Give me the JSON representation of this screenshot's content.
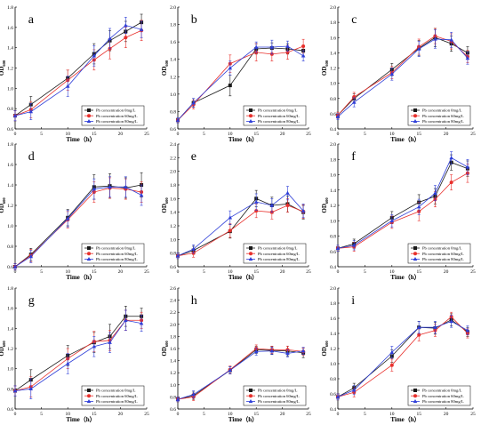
{
  "colors": {
    "s0": "#1a1a1a",
    "s1": "#e8302c",
    "s2": "#2f3fd8"
  },
  "chart_data": [
    {
      "type": "line",
      "letter": "a",
      "ylabel": "OD",
      "ylabel_sub": "600",
      "xlabel": "Time（h）",
      "xlim": [
        0,
        25
      ],
      "ylim": [
        0.6,
        1.8
      ],
      "xticks": [
        0,
        5,
        10,
        15,
        20,
        25
      ],
      "xtick_labels": [
        "0",
        "5",
        "10",
        "15",
        "20",
        "25"
      ],
      "yticks": [
        0.6,
        0.8,
        1.0,
        1.2,
        1.4,
        1.6,
        1.8
      ],
      "ytick_labels": [
        "0.6",
        "0.8",
        "1.0",
        "1.2",
        "1.4",
        "1.6",
        "1.8"
      ],
      "x": [
        0,
        3,
        10,
        15,
        18,
        21,
        24
      ],
      "series": [
        {
          "name": "Pb concentration 0mg/L",
          "values": [
            0.73,
            0.84,
            1.1,
            1.34,
            1.47,
            1.56,
            1.65
          ],
          "err": [
            0.05,
            0.08,
            0.08,
            0.1,
            0.1,
            0.1,
            0.08
          ]
        },
        {
          "name": "Pb concentration 60mg/L",
          "values": [
            0.73,
            0.79,
            1.08,
            1.28,
            1.39,
            1.5,
            1.57
          ],
          "err": [
            0.05,
            0.08,
            0.1,
            0.1,
            0.1,
            0.1,
            0.1
          ]
        },
        {
          "name": "Pb concentration 80mg/L",
          "values": [
            0.73,
            0.77,
            1.02,
            1.32,
            1.49,
            1.62,
            1.58
          ],
          "err": [
            0.05,
            0.08,
            0.1,
            0.1,
            0.1,
            0.08,
            0.08
          ]
        }
      ]
    },
    {
      "type": "line",
      "letter": "b",
      "ylabel": "OD",
      "ylabel_sub": "600",
      "xlabel": "Time（h）",
      "xlim": [
        0,
        25
      ],
      "ylim": [
        0.6,
        2.0
      ],
      "xticks": [
        0,
        5,
        10,
        15,
        20,
        25
      ],
      "xtick_labels": [
        "0",
        "5",
        "10",
        "15",
        "20",
        "25"
      ],
      "yticks": [
        0.6,
        0.8,
        1.0,
        1.2,
        1.4,
        1.6,
        1.8,
        2.0
      ],
      "ytick_labels": [
        "0.6",
        "0.8",
        "1.0",
        "1.2",
        "1.4",
        "1.6",
        "1.8",
        "2.0"
      ],
      "x": [
        0,
        3,
        10,
        15,
        18,
        21,
        24
      ],
      "series": [
        {
          "name": "Pb concentration 0mg/L",
          "values": [
            0.7,
            0.9,
            1.1,
            1.52,
            1.53,
            1.52,
            1.5
          ],
          "err": [
            0.03,
            0.05,
            0.12,
            0.06,
            0.06,
            0.06,
            0.06
          ]
        },
        {
          "name": "Pb concentration 60mg/L",
          "values": [
            0.7,
            0.88,
            1.35,
            1.48,
            1.46,
            1.48,
            1.55
          ],
          "err": [
            0.03,
            0.05,
            0.1,
            0.1,
            0.08,
            0.08,
            0.08
          ]
        },
        {
          "name": "Pb concentration 80mg/L",
          "values": [
            0.7,
            0.9,
            1.3,
            1.54,
            1.54,
            1.55,
            1.44
          ],
          "err": [
            0.03,
            0.05,
            0.08,
            0.06,
            0.08,
            0.06,
            0.06
          ]
        }
      ]
    },
    {
      "type": "line",
      "letter": "c",
      "ylabel": "OD",
      "ylabel_sub": "600",
      "xlabel": "Time（h）",
      "xlim": [
        0,
        25
      ],
      "ylim": [
        0.4,
        2.0
      ],
      "xticks": [
        0,
        5,
        10,
        15,
        20,
        25
      ],
      "xtick_labels": [
        "0",
        "5",
        "10",
        "15",
        "20",
        "25"
      ],
      "yticks": [
        0.4,
        0.6,
        0.8,
        1.0,
        1.2,
        1.4,
        1.6,
        1.8,
        2.0
      ],
      "ytick_labels": [
        "0.4",
        "0.6",
        "0.8",
        "1.0",
        "1.2",
        "1.4",
        "1.6",
        "1.8",
        "2.0"
      ],
      "x": [
        0,
        3,
        10,
        15,
        18,
        21,
        24
      ],
      "series": [
        {
          "name": "Pb concentration 0mg/L",
          "values": [
            0.58,
            0.8,
            1.18,
            1.46,
            1.6,
            1.52,
            1.4
          ],
          "err": [
            0.04,
            0.06,
            0.08,
            0.1,
            0.12,
            0.1,
            0.08
          ]
        },
        {
          "name": "Pb concentration 60mg/L",
          "values": [
            0.58,
            0.82,
            1.14,
            1.48,
            1.62,
            1.55,
            1.35
          ],
          "err": [
            0.04,
            0.06,
            0.08,
            0.1,
            0.1,
            0.1,
            0.08
          ]
        },
        {
          "name": "Pb concentration 80mg/L",
          "values": [
            0.56,
            0.75,
            1.12,
            1.45,
            1.58,
            1.57,
            1.33
          ],
          "err": [
            0.04,
            0.06,
            0.08,
            0.1,
            0.12,
            0.1,
            0.08
          ]
        }
      ]
    },
    {
      "type": "line",
      "letter": "d",
      "ylabel": "OD",
      "ylabel_sub": "600",
      "xlabel": "Time（h）",
      "xlim": [
        0,
        25
      ],
      "ylim": [
        0.6,
        1.8
      ],
      "xticks": [
        0,
        5,
        10,
        15,
        20,
        25
      ],
      "xtick_labels": [
        "0",
        "5",
        "10",
        "15",
        "20",
        "25"
      ],
      "yticks": [
        0.6,
        0.8,
        1.0,
        1.2,
        1.4,
        1.6,
        1.8
      ],
      "ytick_labels": [
        "0.6",
        "0.8",
        "1.0",
        "1.2",
        "1.4",
        "1.6",
        "1.8"
      ],
      "x": [
        0,
        3,
        10,
        15,
        18,
        21,
        24
      ],
      "series": [
        {
          "name": "Pb concentration 0mg/L",
          "values": [
            0.6,
            0.72,
            1.08,
            1.38,
            1.39,
            1.37,
            1.4
          ],
          "err": [
            0.03,
            0.06,
            0.08,
            0.12,
            0.12,
            0.1,
            0.12
          ]
        },
        {
          "name": "Pb concentration 60mg/L",
          "values": [
            0.6,
            0.71,
            1.06,
            1.33,
            1.37,
            1.36,
            1.33
          ],
          "err": [
            0.03,
            0.06,
            0.08,
            0.1,
            0.1,
            0.1,
            0.1
          ]
        },
        {
          "name": "Pb concentration 80mg/L",
          "values": [
            0.6,
            0.7,
            1.07,
            1.36,
            1.38,
            1.38,
            1.3
          ],
          "err": [
            0.03,
            0.06,
            0.08,
            0.1,
            0.1,
            0.1,
            0.1
          ]
        }
      ]
    },
    {
      "type": "line",
      "letter": "e",
      "ylabel": "OD",
      "ylabel_sub": "600",
      "xlabel": "Time（h）",
      "xlim": [
        0,
        25
      ],
      "ylim": [
        0.6,
        2.4
      ],
      "xticks": [
        0,
        5,
        10,
        15,
        20,
        25
      ],
      "xtick_labels": [
        "0",
        "5",
        "10",
        "15",
        "20",
        "25"
      ],
      "yticks": [
        0.6,
        0.8,
        1.0,
        1.2,
        1.4,
        1.6,
        1.8,
        2.0,
        2.2,
        2.4
      ],
      "ytick_labels": [
        "0.6",
        "0.8",
        "1.0",
        "1.2",
        "1.4",
        "1.6",
        "1.8",
        "2.0",
        "2.2",
        "2.4"
      ],
      "x": [
        0,
        3,
        10,
        15,
        18,
        21,
        24
      ],
      "series": [
        {
          "name": "Pb concentration 0mg/L",
          "values": [
            0.76,
            0.84,
            1.12,
            1.6,
            1.5,
            1.52,
            1.4
          ],
          "err": [
            0.04,
            0.06,
            0.1,
            0.12,
            0.12,
            0.12,
            0.1
          ]
        },
        {
          "name": "Pb concentration 60mg/L",
          "values": [
            0.76,
            0.8,
            1.13,
            1.42,
            1.4,
            1.5,
            1.41
          ],
          "err": [
            0.04,
            0.06,
            0.1,
            0.1,
            0.1,
            0.1,
            0.1
          ]
        },
        {
          "name": "Pb concentration 80mg/L",
          "values": [
            0.76,
            0.86,
            1.32,
            1.55,
            1.5,
            1.68,
            1.42
          ],
          "err": [
            0.04,
            0.06,
            0.1,
            0.12,
            0.1,
            0.1,
            0.1
          ]
        }
      ]
    },
    {
      "type": "line",
      "letter": "f",
      "ylabel": "OD",
      "ylabel_sub": "600",
      "xlabel": "Time（h）",
      "xlim": [
        0,
        25
      ],
      "ylim": [
        0.4,
        2.0
      ],
      "xticks": [
        0,
        5,
        10,
        15,
        20,
        25
      ],
      "xtick_labels": [
        "0",
        "5",
        "10",
        "15",
        "20",
        "25"
      ],
      "yticks": [
        0.4,
        0.6,
        0.8,
        1.0,
        1.2,
        1.4,
        1.6,
        1.8,
        2.0
      ],
      "ytick_labels": [
        "0.4",
        "0.6",
        "0.8",
        "1.0",
        "1.2",
        "1.4",
        "1.6",
        "1.8",
        "2.0"
      ],
      "x": [
        0,
        3,
        10,
        15,
        18,
        21,
        24
      ],
      "series": [
        {
          "name": "Pb concentration 0mg/L",
          "values": [
            0.64,
            0.7,
            1.04,
            1.24,
            1.32,
            1.76,
            1.68
          ],
          "err": [
            0.04,
            0.06,
            0.08,
            0.1,
            0.1,
            0.1,
            0.1
          ]
        },
        {
          "name": "Pb concentration 60mg/L",
          "values": [
            0.64,
            0.66,
            0.98,
            1.12,
            1.28,
            1.5,
            1.62
          ],
          "err": [
            0.04,
            0.06,
            0.08,
            0.12,
            0.1,
            0.1,
            0.12
          ]
        },
        {
          "name": "Pb concentration 80mg/L",
          "values": [
            0.64,
            0.68,
            1.0,
            1.18,
            1.36,
            1.82,
            1.7
          ],
          "err": [
            0.04,
            0.06,
            0.08,
            0.1,
            0.1,
            0.08,
            0.1
          ]
        }
      ]
    },
    {
      "type": "line",
      "letter": "g",
      "ylabel": "OD",
      "ylabel_sub": "600",
      "xlabel": "Time（h）",
      "xlim": [
        0,
        25
      ],
      "ylim": [
        0.6,
        1.8
      ],
      "xticks": [
        0,
        5,
        10,
        15,
        20,
        25
      ],
      "xtick_labels": [
        "0",
        "5",
        "10",
        "15",
        "20",
        "25"
      ],
      "yticks": [
        0.6,
        0.8,
        1.0,
        1.2,
        1.4,
        1.6,
        1.8
      ],
      "ytick_labels": [
        "0.6",
        "0.8",
        "1.0",
        "1.2",
        "1.4",
        "1.6",
        "1.8"
      ],
      "x": [
        0,
        3,
        10,
        15,
        18,
        21,
        24
      ],
      "series": [
        {
          "name": "Pb concentration 0mg/L",
          "values": [
            0.78,
            0.89,
            1.13,
            1.26,
            1.32,
            1.52,
            1.52
          ],
          "err": [
            0.05,
            0.1,
            0.1,
            0.1,
            0.12,
            0.1,
            0.08
          ]
        },
        {
          "name": "Pb concentration 60mg/L",
          "values": [
            0.78,
            0.82,
            1.1,
            1.27,
            1.28,
            1.48,
            1.48
          ],
          "err": [
            0.05,
            0.1,
            0.1,
            0.1,
            0.1,
            0.1,
            0.08
          ]
        },
        {
          "name": "Pb concentration 80mg/L",
          "values": [
            0.78,
            0.8,
            1.05,
            1.22,
            1.26,
            1.48,
            1.45
          ],
          "err": [
            0.05,
            0.1,
            0.1,
            0.1,
            0.1,
            0.1,
            0.08
          ]
        }
      ]
    },
    {
      "type": "line",
      "letter": "h",
      "ylabel": "OD",
      "ylabel_sub": "600",
      "xlabel": "Time（h）",
      "xlim": [
        0,
        25
      ],
      "ylim": [
        0.6,
        2.6
      ],
      "xticks": [
        0,
        5,
        10,
        15,
        20,
        25
      ],
      "xtick_labels": [
        "0",
        "5",
        "10",
        "15",
        "20",
        "25"
      ],
      "yticks": [
        0.6,
        0.8,
        1.0,
        1.2,
        1.4,
        1.6,
        1.8,
        2.0,
        2.2,
        2.4,
        2.6
      ],
      "ytick_labels": [
        "0.6",
        "0.8",
        "1.0",
        "1.2",
        "1.4",
        "1.6",
        "1.8",
        "2.0",
        "2.2",
        "2.4",
        "2.6"
      ],
      "x": [
        0,
        3,
        10,
        15,
        18,
        21,
        24
      ],
      "series": [
        {
          "name": "Pb concentration 0mg/L",
          "values": [
            0.76,
            0.82,
            1.24,
            1.58,
            1.57,
            1.56,
            1.53
          ],
          "err": [
            0.04,
            0.06,
            0.06,
            0.06,
            0.06,
            0.08,
            0.08
          ]
        },
        {
          "name": "Pb concentration 60mg/L",
          "values": [
            0.76,
            0.8,
            1.25,
            1.6,
            1.58,
            1.58,
            1.55
          ],
          "err": [
            0.04,
            0.06,
            0.06,
            0.06,
            0.06,
            0.06,
            0.06
          ]
        },
        {
          "name": "Pb concentration 80mg/L",
          "values": [
            0.76,
            0.84,
            1.24,
            1.55,
            1.56,
            1.52,
            1.56
          ],
          "err": [
            0.04,
            0.06,
            0.06,
            0.06,
            0.06,
            0.06,
            0.06
          ]
        }
      ]
    },
    {
      "type": "line",
      "letter": "i",
      "ylabel": "OD",
      "ylabel_sub": "600",
      "xlabel": "Time（h）",
      "xlim": [
        0,
        25
      ],
      "ylim": [
        0.4,
        2.0
      ],
      "xticks": [
        0,
        5,
        10,
        15,
        20,
        25
      ],
      "xtick_labels": [
        "0",
        "5",
        "10",
        "15",
        "20",
        "25"
      ],
      "yticks": [
        0.4,
        0.6,
        0.8,
        1.0,
        1.2,
        1.4,
        1.6,
        1.8,
        2.0
      ],
      "ytick_labels": [
        "0.4",
        "0.6",
        "0.8",
        "1.0",
        "1.2",
        "1.4",
        "1.6",
        "1.8",
        "2.0"
      ],
      "x": [
        0,
        3,
        10,
        15,
        18,
        21,
        24
      ],
      "series": [
        {
          "name": "Pb concentration 0mg/L",
          "values": [
            0.56,
            0.68,
            1.1,
            1.48,
            1.47,
            1.58,
            1.42
          ],
          "err": [
            0.04,
            0.06,
            0.08,
            0.08,
            0.08,
            0.08,
            0.06
          ]
        },
        {
          "name": "Pb concentration 60mg/L",
          "values": [
            0.56,
            0.62,
            0.98,
            1.38,
            1.44,
            1.62,
            1.4
          ],
          "err": [
            0.04,
            0.06,
            0.08,
            0.08,
            0.08,
            0.06,
            0.06
          ]
        },
        {
          "name": "Pb concentration 80mg/L",
          "values": [
            0.56,
            0.65,
            1.15,
            1.48,
            1.48,
            1.56,
            1.44
          ],
          "err": [
            0.04,
            0.06,
            0.08,
            0.08,
            0.08,
            0.08,
            0.06
          ]
        }
      ]
    }
  ]
}
